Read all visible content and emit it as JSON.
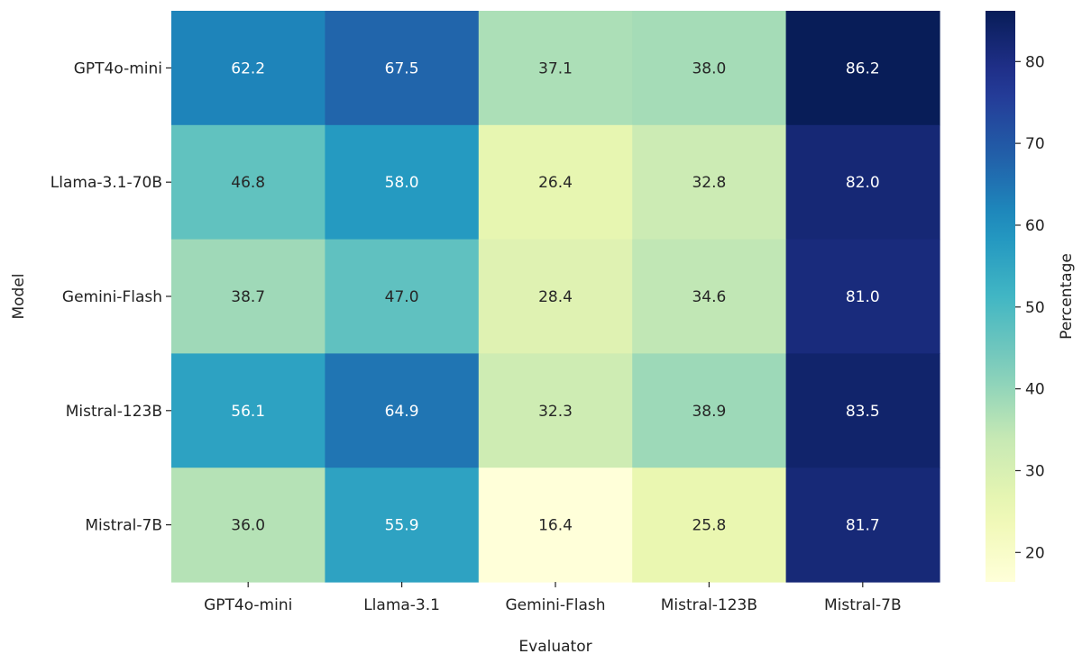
{
  "chart_data": {
    "type": "heatmap",
    "title": "",
    "xlabel": "Evaluator",
    "ylabel": "Model",
    "x_categories": [
      "GPT4o-mini",
      "Llama-3.1",
      "Gemini-Flash",
      "Mistral-123B",
      "Mistral-7B"
    ],
    "y_categories": [
      "GPT4o-mini",
      "Llama-3.1-70B",
      "Gemini-Flash",
      "Mistral-123B",
      "Mistral-7B"
    ],
    "values": [
      [
        62.2,
        67.5,
        37.1,
        38.0,
        86.2
      ],
      [
        46.8,
        58.0,
        26.4,
        32.8,
        82.0
      ],
      [
        38.7,
        47.0,
        28.4,
        34.6,
        81.0
      ],
      [
        56.1,
        64.9,
        32.3,
        38.9,
        83.5
      ],
      [
        36.0,
        55.9,
        16.4,
        25.8,
        81.7
      ]
    ],
    "value_labels": [
      [
        "62.2",
        "67.5",
        "37.1",
        "38.0",
        "86.2"
      ],
      [
        "46.8",
        "58.0",
        "26.4",
        "32.8",
        "82.0"
      ],
      [
        "38.7",
        "47.0",
        "28.4",
        "34.6",
        "81.0"
      ],
      [
        "56.1",
        "64.9",
        "32.3",
        "38.9",
        "83.5"
      ],
      [
        "36.0",
        "55.9",
        "16.4",
        "25.8",
        "81.7"
      ]
    ],
    "colorbar": {
      "label": "Percentage",
      "colormap": "YlGnBu",
      "range": [
        16.4,
        86.2
      ],
      "ticks": [
        20,
        30,
        40,
        50,
        60,
        70,
        80
      ],
      "tick_labels": [
        "20",
        "30",
        "40",
        "50",
        "60",
        "70",
        "80"
      ]
    },
    "colors": {
      "text_dark": "#262626",
      "text_light": "#ffffff"
    }
  }
}
